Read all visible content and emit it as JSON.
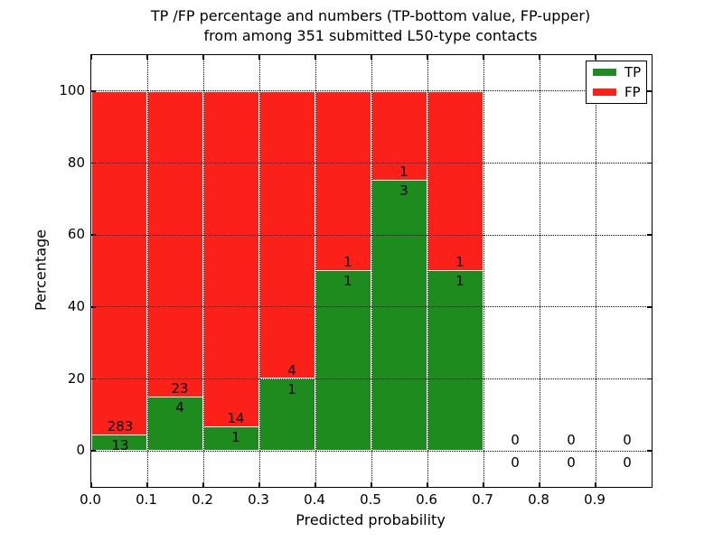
{
  "title": {
    "line1": "TP /FP percentage and numbers (TP-bottom value, FP-upper)",
    "line2": "from among 351 submitted L50-type contacts"
  },
  "axes": {
    "x_label": "Predicted probability",
    "y_label": "Percentage",
    "x_ticks": [
      "0.0",
      "0.1",
      "0.2",
      "0.3",
      "0.4",
      "0.5",
      "0.6",
      "0.7",
      "0.8",
      "0.9"
    ],
    "y_ticks": [
      "0",
      "20",
      "40",
      "60",
      "80",
      "100"
    ]
  },
  "legend": {
    "items": [
      {
        "label": "TP",
        "color": "#1e8b1e"
      },
      {
        "label": "FP",
        "color": "#fb2119"
      }
    ]
  },
  "chart_data": {
    "type": "bar",
    "stacked": true,
    "normalized_to_percent": true,
    "title": "TP /FP percentage and numbers (TP-bottom value, FP-upper) from among 351 submitted L50-type contacts",
    "xlabel": "Predicted probability",
    "ylabel": "Percentage",
    "xlim": [
      0.0,
      1.0
    ],
    "ylim": [
      -10,
      110
    ],
    "grid": "dotted",
    "legend_position": "upper right",
    "total_contacts": 351,
    "bin_width": 0.1,
    "bin_starts": [
      0.0,
      0.1,
      0.2,
      0.3,
      0.4,
      0.5,
      0.6,
      0.7,
      0.8,
      0.9
    ],
    "series": [
      {
        "name": "TP",
        "color": "#1e8b1e",
        "counts": [
          13,
          4,
          1,
          1,
          1,
          3,
          1,
          0,
          0,
          0
        ]
      },
      {
        "name": "FP",
        "color": "#fb2119",
        "counts": [
          283,
          23,
          14,
          4,
          1,
          1,
          1,
          0,
          0,
          0
        ]
      }
    ],
    "tp_percent": [
      4.39,
      14.81,
      6.67,
      20.0,
      50.0,
      75.0,
      50.0,
      0,
      0,
      0
    ],
    "y_gridlines": [
      0,
      20,
      40,
      60,
      80,
      100
    ],
    "x_gridlines": [
      0.1,
      0.2,
      0.3,
      0.4,
      0.5,
      0.6,
      0.7,
      0.8,
      0.9
    ]
  }
}
